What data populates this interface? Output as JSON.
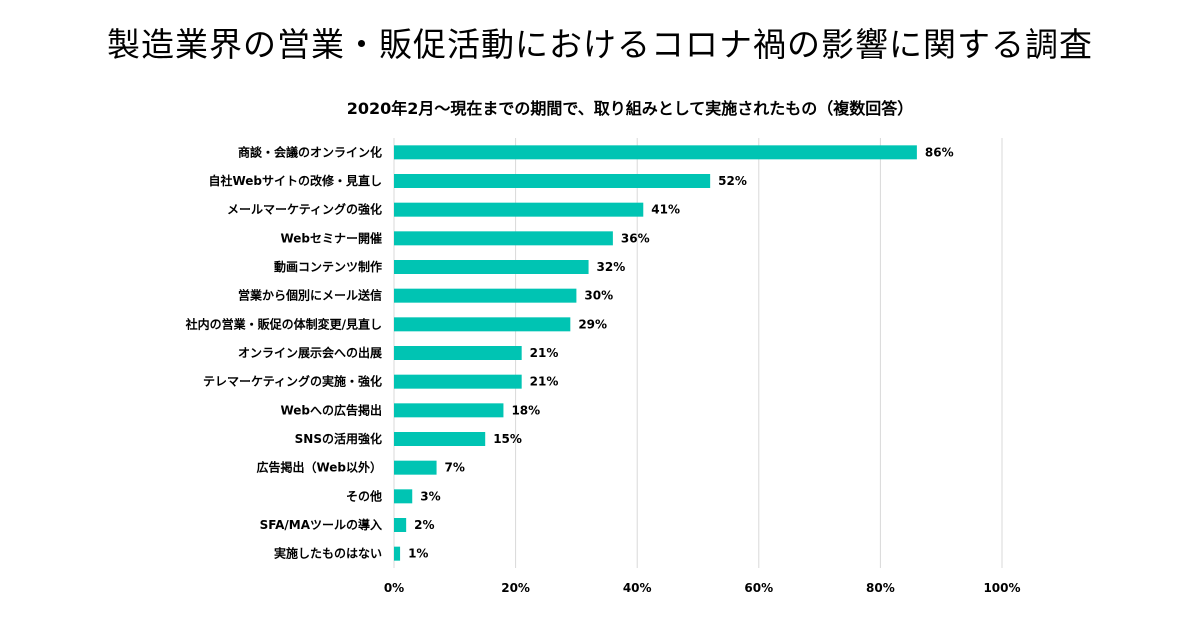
{
  "header": {
    "title": "製造業界の営業・販促活動におけるコロナ禍の影響に関する調査"
  },
  "chart_data": {
    "type": "bar",
    "orientation": "horizontal",
    "title": "2020年2月～現在までの期間で、取り組みとして実施されたもの（複数回答）",
    "categories": [
      "商談・会議のオンライン化",
      "自社Webサイトの改修・見直し",
      "メールマーケティングの強化",
      "Webセミナー開催",
      "動画コンテンツ制作",
      "営業から個別にメール送信",
      "社内の営業・販促の体制変更/見直し",
      "オンライン展示会への出展",
      "テレマーケティングの実施・強化",
      "Webへの広告掲出",
      "SNSの活用強化",
      "広告掲出（Web以外）",
      "その他",
      "SFA/MAツールの導入",
      "実施したものはない"
    ],
    "values": [
      86,
      52,
      41,
      36,
      32,
      30,
      29,
      21,
      21,
      18,
      15,
      7,
      3,
      2,
      1
    ],
    "value_labels": [
      "86%",
      "52%",
      "41%",
      "36%",
      "32%",
      "30%",
      "29%",
      "21%",
      "21%",
      "18%",
      "15%",
      "7%",
      "3%",
      "2%",
      "1%"
    ],
    "xlim": [
      0,
      100
    ],
    "xticks": [
      0,
      20,
      40,
      60,
      80,
      100
    ],
    "xtick_labels": [
      "0%",
      "20%",
      "40%",
      "60%",
      "80%",
      "100%"
    ],
    "grid": "vertical",
    "bar_color": "#00c4b3",
    "grid_color": "#d9d9d9"
  }
}
